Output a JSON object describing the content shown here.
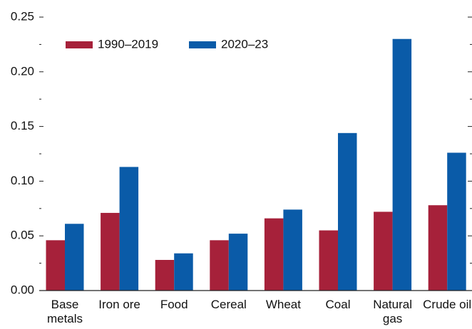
{
  "chart_data": {
    "type": "bar",
    "categories": [
      "Base\nmetals",
      "Iron ore",
      "Food",
      "Cereal",
      "Wheat",
      "Coal",
      "Natural\ngas",
      "Crude oil"
    ],
    "series": [
      {
        "name": "1990–2019",
        "color": "#a6213a",
        "values": [
          0.046,
          0.071,
          0.028,
          0.046,
          0.066,
          0.055,
          0.072,
          0.078
        ]
      },
      {
        "name": "2020–23",
        "color": "#0a5ba8",
        "values": [
          0.061,
          0.113,
          0.034,
          0.052,
          0.074,
          0.144,
          0.23,
          0.126
        ]
      }
    ],
    "ylim": [
      0,
      0.25
    ],
    "yticks": [
      {
        "value": 0,
        "label": "0.00"
      },
      0.05,
      {
        "value": 0.1,
        "label": "0.10"
      },
      0.15,
      {
        "value": 0.2,
        "label": "0.20"
      },
      0.25
    ],
    "yminorticks": [
      0.025,
      0.075,
      0.125,
      0.175,
      0.225
    ],
    "legend": "top-left"
  }
}
